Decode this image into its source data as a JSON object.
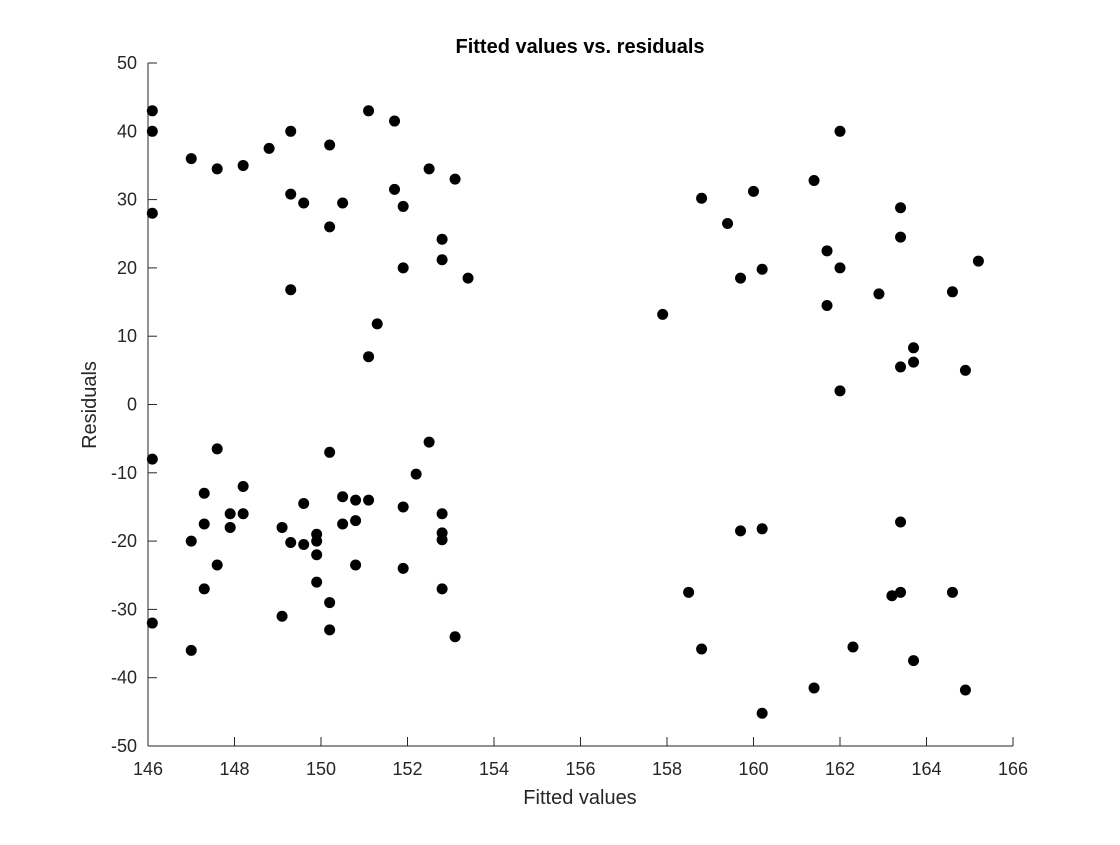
{
  "chart_data": {
    "type": "scatter",
    "title": "Fitted values vs. residuals",
    "xlabel": "Fitted values",
    "ylabel": "Residuals",
    "xlim": [
      146,
      166
    ],
    "ylim": [
      -50,
      50
    ],
    "xticks": [
      146,
      148,
      150,
      152,
      154,
      156,
      158,
      160,
      162,
      164,
      166
    ],
    "yticks": [
      -50,
      -40,
      -30,
      -20,
      -10,
      0,
      10,
      20,
      30,
      40,
      50
    ],
    "grid": false,
    "marker_color": "#000000",
    "points": [
      [
        146.1,
        43.0
      ],
      [
        146.1,
        40.0
      ],
      [
        146.1,
        28.0
      ],
      [
        146.1,
        -8.0
      ],
      [
        146.1,
        -32.0
      ],
      [
        147.0,
        36.0
      ],
      [
        147.0,
        -20.0
      ],
      [
        147.0,
        -36.0
      ],
      [
        147.3,
        -13.0
      ],
      [
        147.3,
        -17.5
      ],
      [
        147.3,
        -27.0
      ],
      [
        147.6,
        34.5
      ],
      [
        147.6,
        -6.5
      ],
      [
        147.6,
        -23.5
      ],
      [
        147.9,
        -16.0
      ],
      [
        147.9,
        -18.0
      ],
      [
        148.2,
        35.0
      ],
      [
        148.2,
        -12.0
      ],
      [
        148.2,
        -16.0
      ],
      [
        148.8,
        37.5
      ],
      [
        149.1,
        -18.0
      ],
      [
        149.1,
        -31.0
      ],
      [
        149.3,
        40.0
      ],
      [
        149.3,
        30.8
      ],
      [
        149.3,
        16.8
      ],
      [
        149.3,
        -20.2
      ],
      [
        149.6,
        29.5
      ],
      [
        149.6,
        -14.5
      ],
      [
        149.6,
        -20.5
      ],
      [
        149.9,
        -19.0
      ],
      [
        149.9,
        -20.0
      ],
      [
        149.9,
        -22.0
      ],
      [
        149.9,
        -26.0
      ],
      [
        150.2,
        38.0
      ],
      [
        150.2,
        26.0
      ],
      [
        150.2,
        -7.0
      ],
      [
        150.2,
        -29.0
      ],
      [
        150.2,
        -33.0
      ],
      [
        150.5,
        29.5
      ],
      [
        150.5,
        -13.5
      ],
      [
        150.5,
        -17.5
      ],
      [
        150.8,
        -14.0
      ],
      [
        150.8,
        -17.0
      ],
      [
        150.8,
        -23.5
      ],
      [
        151.1,
        43.0
      ],
      [
        151.1,
        7.0
      ],
      [
        151.1,
        -14.0
      ],
      [
        151.3,
        11.8
      ],
      [
        151.7,
        41.5
      ],
      [
        151.7,
        31.5
      ],
      [
        151.9,
        29.0
      ],
      [
        151.9,
        20.0
      ],
      [
        151.9,
        -15.0
      ],
      [
        151.9,
        -24.0
      ],
      [
        152.2,
        -10.2
      ],
      [
        152.5,
        34.5
      ],
      [
        152.5,
        -5.5
      ],
      [
        152.8,
        24.2
      ],
      [
        152.8,
        21.2
      ],
      [
        152.8,
        -16.0
      ],
      [
        152.8,
        -18.8
      ],
      [
        152.8,
        -19.8
      ],
      [
        152.8,
        -27.0
      ],
      [
        153.1,
        33.0
      ],
      [
        153.1,
        -34.0
      ],
      [
        153.4,
        18.5
      ],
      [
        157.9,
        13.2
      ],
      [
        158.5,
        -27.5
      ],
      [
        158.8,
        30.2
      ],
      [
        158.8,
        -35.8
      ],
      [
        159.4,
        26.5
      ],
      [
        159.7,
        18.5
      ],
      [
        159.7,
        -18.5
      ],
      [
        160.0,
        31.2
      ],
      [
        160.2,
        19.8
      ],
      [
        160.2,
        -18.2
      ],
      [
        160.2,
        -45.2
      ],
      [
        161.4,
        32.8
      ],
      [
        161.4,
        -41.5
      ],
      [
        161.7,
        22.5
      ],
      [
        161.7,
        14.5
      ],
      [
        162.0,
        40.0
      ],
      [
        162.0,
        20.0
      ],
      [
        162.0,
        2.0
      ],
      [
        162.3,
        -35.5
      ],
      [
        162.9,
        16.2
      ],
      [
        163.2,
        -28.0
      ],
      [
        163.4,
        28.8
      ],
      [
        163.4,
        24.5
      ],
      [
        163.4,
        5.5
      ],
      [
        163.4,
        -17.2
      ],
      [
        163.4,
        -27.5
      ],
      [
        163.7,
        8.3
      ],
      [
        163.7,
        6.2
      ],
      [
        163.7,
        -37.5
      ],
      [
        164.6,
        16.5
      ],
      [
        164.6,
        -27.5
      ],
      [
        164.9,
        5.0
      ],
      [
        164.9,
        -41.8
      ],
      [
        165.2,
        21.0
      ]
    ]
  }
}
